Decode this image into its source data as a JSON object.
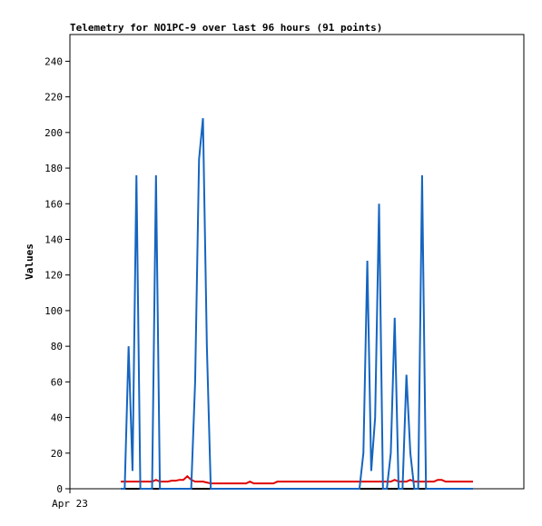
{
  "chart_data": {
    "type": "line",
    "title": "Telemetry for NO1PC-9 over last 96 hours (91 points)",
    "y_label": "Values",
    "x": [
      13,
      14,
      15,
      16,
      17,
      18,
      19,
      20,
      21,
      22,
      23,
      24,
      25,
      26,
      27,
      28,
      29,
      30,
      31,
      32,
      33,
      34,
      35,
      36,
      37,
      38,
      39,
      40,
      41,
      42,
      43,
      44,
      45,
      46,
      47,
      48,
      49,
      50,
      51,
      52,
      53,
      54,
      55,
      56,
      57,
      58,
      59,
      60,
      61,
      62,
      63,
      64,
      65,
      66,
      67,
      68,
      69,
      70,
      71,
      72,
      73,
      74,
      75,
      76,
      77,
      78,
      79,
      80,
      81,
      82,
      83,
      84,
      85,
      86,
      87,
      88,
      89,
      90,
      91,
      92,
      93,
      94,
      95,
      96,
      97,
      98,
      99,
      100,
      101,
      102,
      103
    ],
    "series": [
      {
        "color": "#1565c0",
        "values": [
          0,
          0,
          80,
          10,
          176,
          0,
          0,
          0,
          0,
          176,
          0,
          0,
          0,
          0,
          0,
          0,
          0,
          0,
          0,
          60,
          185,
          208,
          80,
          0,
          0,
          0,
          0,
          0,
          0,
          0,
          0,
          0,
          0,
          0,
          0,
          0,
          0,
          0,
          0,
          0,
          0,
          0,
          0,
          0,
          0,
          0,
          0,
          0,
          0,
          0,
          0,
          0,
          0,
          0,
          0,
          0,
          0,
          0,
          0,
          0,
          0,
          0,
          20,
          128,
          10,
          40,
          160,
          0,
          0,
          20,
          96,
          0,
          0,
          64,
          20,
          0,
          0,
          176,
          0,
          0,
          0,
          0,
          0,
          0,
          0,
          0,
          0,
          0,
          0,
          0,
          0
        ]
      },
      {
        "color": "#e00000",
        "values": [
          4,
          4,
          4,
          4,
          4,
          4,
          4,
          4,
          4,
          5,
          4,
          4,
          4,
          4.5,
          4.5,
          5,
          5,
          7,
          5,
          4,
          4,
          4,
          3.5,
          3,
          3,
          3,
          3,
          3,
          3,
          3,
          3,
          3,
          3,
          4,
          3,
          3,
          3,
          3,
          3,
          3,
          4,
          4,
          4,
          4,
          4,
          4,
          4,
          4,
          4,
          4,
          4,
          4,
          4,
          4,
          4,
          4,
          4,
          4,
          4,
          4,
          4,
          4,
          4,
          4,
          4,
          4,
          4,
          4,
          4,
          4,
          5,
          4,
          4,
          4,
          5,
          4,
          4,
          4,
          4,
          4,
          4,
          5,
          5,
          4,
          4,
          4,
          4,
          4,
          4,
          4,
          4
        ]
      },
      {
        "color": "#000000",
        "values": [
          0,
          0,
          0,
          0,
          0,
          0,
          0,
          0,
          0,
          0,
          0,
          0,
          0,
          0,
          0,
          0,
          0,
          0,
          0,
          0,
          0,
          0,
          0,
          0,
          0,
          0,
          0,
          0,
          0,
          0,
          0,
          0,
          0,
          0,
          0,
          0,
          0,
          0,
          0,
          0,
          0,
          0,
          0,
          0,
          0,
          0,
          0,
          0,
          0,
          0,
          0,
          0,
          0,
          0,
          0,
          0,
          0,
          0,
          0,
          0,
          0,
          0,
          0,
          0,
          0,
          0,
          0,
          0,
          0,
          0,
          0,
          0,
          0,
          0,
          0,
          0,
          0,
          0,
          0,
          0,
          0,
          0,
          0,
          0,
          0,
          0,
          0,
          0,
          0,
          0,
          0
        ]
      }
    ],
    "xlim": [
      0,
      116
    ],
    "xticks": [
      {
        "value": 0,
        "label": "Apr 23"
      }
    ],
    "ylim": [
      0,
      255
    ],
    "yticks": [
      0,
      20,
      40,
      60,
      80,
      100,
      120,
      140,
      160,
      180,
      200,
      220,
      240
    ]
  }
}
